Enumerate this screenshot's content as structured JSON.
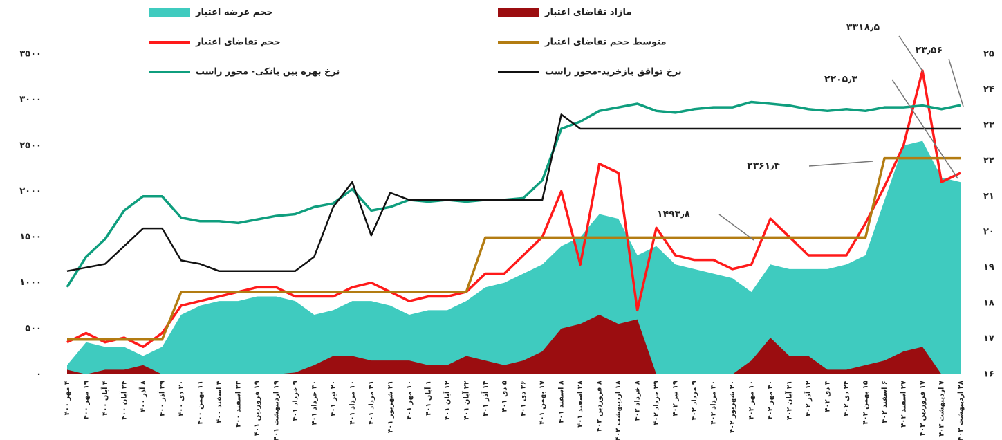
{
  "chart_data": {
    "type": "line",
    "categories": [
      "۴ مهر ۴۰۰",
      "۱۹ مهر ۴۰۰",
      "۴ آبان ۴۰۰",
      "۲۴ آبان ۴۰۰",
      "۸ آذر ۴۰۰",
      "۲۹ آذر ۴۰۰",
      "۲۰ دی ۴۰۰",
      "۱۱ بهمن ۴۰۰",
      "۳ اسفند ۴۰۰",
      "۲۳ اسفند ۴۰۰",
      "۱۹ فروردین ۴۰۱",
      "۱۹ اردیبهشت ۴۰۱",
      "۹ خرداد ۴۰۱",
      "۳۰ خرداد ۴۰۱",
      "۲۰ تیر ۴۰۱",
      "۱۰ مرداد ۴۰۱",
      "۳۱ مرداد ۴۰۱",
      "۲۱ شهریور ۴۰۱",
      "۱۰ مهر ۴۰۱",
      "۱ آبان ۴۰۱",
      "۱۲ آبان ۴۰۱",
      "۲۲ آبان ۴۰۱",
      "۱۳ آذر ۴۰۱",
      "۵ دی ۴۰۱",
      "۲۶ دی ۴۰۱",
      "۱۷ بهمن ۴۰۱",
      "۸ اسفند ۴۰۱",
      "۲۸ اسفند ۴۰۱",
      "۸ فروردین ۴۰۲",
      "۱۸ اردیبهشت ۴۰۲",
      "۸ خرداد ۴۰۲",
      "۲۹ خرداد ۴۰۲",
      "۱۹ تیر ۴۰۲",
      "۹ مرداد ۴۰۲",
      "۳۰ مرداد ۴۰۲",
      "۲۰ شهریور ۴۰۲",
      "۱۰ مهر ۴۰۲",
      "۳۰ مهر ۴۰۲",
      "۲۱ آبان ۴۰۲",
      "۱۲ آذر ۴۰۲",
      "۳ دی ۴۰۲",
      "۲۴ دی ۴۰۲",
      "۱۵ بهمن ۴۰۲",
      "۶ اسفند ۴۰۲",
      "۲۷ اسفند ۴۰۲",
      "۱۷ فروردین ۴۰۳",
      "۷ اردیبهشت ۴۰۳",
      "۲۸ اردیبهشت ۴۰۳"
    ],
    "series": [
      {
        "name": "حجم عرضه اعتبار",
        "type": "area",
        "color": "#3fcbbf",
        "values": [
          100,
          350,
          300,
          300,
          200,
          300,
          650,
          750,
          800,
          800,
          850,
          850,
          800,
          650,
          700,
          800,
          800,
          750,
          650,
          700,
          700,
          800,
          950,
          1000,
          1100,
          1200,
          1400,
          1500,
          1750,
          1700,
          1300,
          1400,
          1200,
          1150,
          1100,
          1050,
          900,
          1200,
          1150,
          1150,
          1150,
          1200,
          1300,
          1900,
          2500,
          2550,
          2150,
          2100
        ]
      },
      {
        "name": "مازاد تقاضای اعتبار",
        "type": "area",
        "color": "#9b0d10",
        "values": [
          50,
          0,
          50,
          50,
          100,
          0,
          0,
          0,
          0,
          0,
          0,
          0,
          20,
          100,
          200,
          200,
          150,
          150,
          150,
          100,
          100,
          200,
          150,
          100,
          150,
          250,
          500,
          550,
          650,
          550,
          600,
          0,
          0,
          0,
          0,
          0,
          150,
          400,
          200,
          200,
          50,
          50,
          100,
          150,
          250,
          300,
          0,
          0
        ]
      },
      {
        "name": "حجم تقاضای اعتبار",
        "type": "line",
        "color": "#ff1a1a",
        "width": 3.5,
        "values": [
          350,
          450,
          350,
          400,
          300,
          450,
          750,
          800,
          850,
          900,
          950,
          950,
          850,
          850,
          850,
          950,
          1000,
          900,
          800,
          850,
          850,
          900,
          1100,
          1100,
          1300,
          1500,
          2000,
          1200,
          2300,
          2200,
          700,
          1600,
          1300,
          1250,
          1250,
          1150,
          1200,
          1700,
          1500,
          1300,
          1300,
          1300,
          1650,
          2050,
          2500,
          3318.5,
          2100,
          2200
        ]
      },
      {
        "name": "متوسط حجم تقاضای اعتبار",
        "type": "line",
        "color": "#b37c12",
        "width": 3.5,
        "values": [
          380,
          380,
          380,
          380,
          380,
          380,
          900,
          900,
          900,
          900,
          900,
          900,
          900,
          900,
          900,
          900,
          900,
          900,
          900,
          900,
          900,
          900,
          1493.8,
          1493.8,
          1493.8,
          1493.8,
          1493.8,
          1493.8,
          1493.8,
          1493.8,
          1493.8,
          1493.8,
          1493.8,
          1493.8,
          1493.8,
          1493.8,
          1493.8,
          1493.8,
          1493.8,
          1493.8,
          1493.8,
          1493.8,
          1493.8,
          2361.4,
          2361.4,
          2361.4,
          2361.4,
          2361.4
        ]
      },
      {
        "name": "نرخ بهره بین بانکی- محور راست",
        "type": "line",
        "axis": "y2",
        "color": "#0f9e7e",
        "width": 3.5,
        "values": [
          18.45,
          19.3,
          19.8,
          20.6,
          21,
          21,
          20.4,
          20.3,
          20.3,
          20.25,
          20.35,
          20.45,
          20.5,
          20.7,
          20.8,
          21.2,
          20.6,
          20.7,
          20.9,
          20.85,
          20.9,
          20.85,
          20.9,
          20.9,
          20.95,
          21.45,
          22.9,
          23.1,
          23.4,
          23.5,
          23.6,
          23.4,
          23.35,
          23.45,
          23.5,
          23.5,
          23.65,
          23.6,
          23.55,
          23.45,
          23.4,
          23.45,
          23.4,
          23.5,
          23.5,
          23.55,
          23.45,
          23.56
        ]
      },
      {
        "name": "نرخ توافق بازخرید-محور راست",
        "type": "line",
        "axis": "y2",
        "color": "#111111",
        "width": 2.5,
        "values": [
          18.9,
          19,
          19.1,
          19.6,
          20.1,
          20.1,
          19.2,
          19.1,
          18.9,
          18.9,
          18.9,
          18.9,
          18.9,
          19.3,
          20.7,
          21.4,
          19.9,
          21.1,
          20.9,
          20.9,
          20.9,
          20.9,
          20.9,
          20.9,
          20.9,
          20.9,
          23.3,
          22.9,
          22.9,
          22.9,
          22.9,
          22.9,
          22.9,
          22.9,
          22.9,
          22.9,
          22.9,
          22.9,
          22.9,
          22.9,
          22.9,
          22.9,
          22.9,
          22.9,
          22.9,
          22.9,
          22.9,
          22.9
        ]
      }
    ],
    "ylim": [
      0,
      3500
    ],
    "yticks": [
      {
        "value": 0,
        "label": "۰"
      },
      {
        "value": 500,
        "label": "۵۰۰"
      },
      {
        "value": 1000,
        "label": "۱۰۰۰"
      },
      {
        "value": 1500,
        "label": "۱۵۰۰"
      },
      {
        "value": 2000,
        "label": "۲۰۰۰"
      },
      {
        "value": 2500,
        "label": "۲۵۰۰"
      },
      {
        "value": 3000,
        "label": "۳۰۰۰"
      },
      {
        "value": 3500,
        "label": "۳۵۰۰"
      }
    ],
    "y2lim": [
      16,
      25
    ],
    "y2ticks": [
      {
        "value": 16,
        "label": "۱۶"
      },
      {
        "value": 17,
        "label": "۱۷"
      },
      {
        "value": 18,
        "label": "۱۸"
      },
      {
        "value": 19,
        "label": "۱۹"
      },
      {
        "value": 20,
        "label": "۲۰"
      },
      {
        "value": 21,
        "label": "۲۱"
      },
      {
        "value": 22,
        "label": "۲۲"
      },
      {
        "value": 23,
        "label": "۲۳"
      },
      {
        "value": 24,
        "label": "۲۴"
      },
      {
        "value": 25,
        "label": "۲۵"
      }
    ],
    "annotations": [
      "۳۳۱۸٫۵",
      "۲۳٫۵۶",
      "۲۲۰۵٫۳",
      "۲۳۶۱٫۴",
      "۱۴۹۳٫۸"
    ],
    "grid": false
  }
}
